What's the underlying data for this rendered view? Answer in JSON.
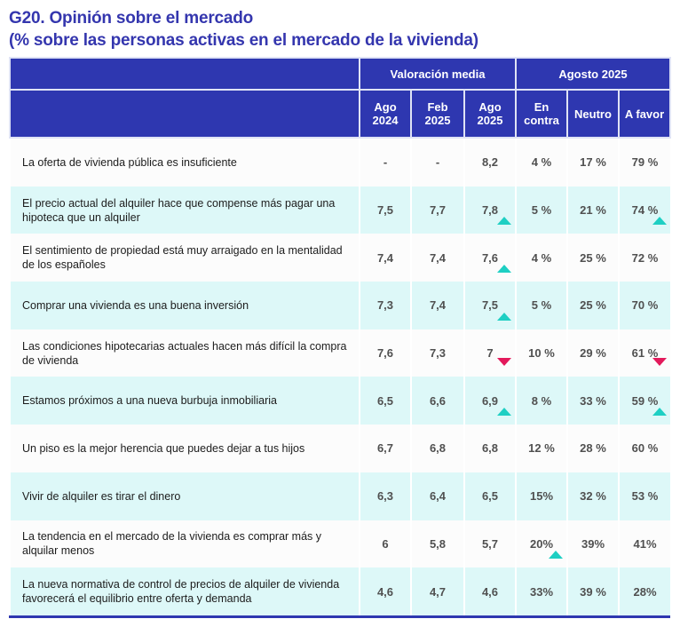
{
  "title": {
    "line1": "G20. Opinión sobre el mercado",
    "line2": "(% sobre las personas activas en el mercado de la vivienda)"
  },
  "header": {
    "group_valoracion": "Valoración media",
    "group_agosto": "Agosto 2025",
    "cols": [
      {
        "line1": "Ago",
        "line2": "2024"
      },
      {
        "line1": "Feb",
        "line2": "2025"
      },
      {
        "line1": "Ago",
        "line2": "2025"
      },
      {
        "line1": "En",
        "line2": "contra"
      },
      {
        "line1": "Neutro",
        "line2": ""
      },
      {
        "line1": "A favor",
        "line2": ""
      }
    ]
  },
  "colors": {
    "header_bg": "#2E37B0",
    "title": "#3436AE",
    "row_tint": "#DDF8F8",
    "trend_up": "#1ECFC3",
    "trend_down": "#E3195B"
  },
  "rows": [
    {
      "label": "La oferta de vivienda pública es insuficiente",
      "ago2024": "-",
      "feb2025": "-",
      "ago2025": "8,2",
      "contra": "4 %",
      "neutro": "17 %",
      "favor": "79 %",
      "trend_ago2025": "",
      "trend_contra": "",
      "trend_favor": ""
    },
    {
      "label": "El precio actual del alquiler hace que compense más pagar una hipoteca que un alquiler",
      "ago2024": "7,5",
      "feb2025": "7,7",
      "ago2025": "7,8",
      "contra": "5 %",
      "neutro": "21 %",
      "favor": "74 %",
      "trend_ago2025": "up",
      "trend_contra": "",
      "trend_favor": "up"
    },
    {
      "label": "El sentimiento de propiedad está muy arraigado en la mentalidad de los españoles",
      "ago2024": "7,4",
      "feb2025": "7,4",
      "ago2025": "7,6",
      "contra": "4 %",
      "neutro": "25 %",
      "favor": "72 %",
      "trend_ago2025": "up",
      "trend_contra": "",
      "trend_favor": ""
    },
    {
      "label": "Comprar una vivienda es una buena inversión",
      "ago2024": "7,3",
      "feb2025": "7,4",
      "ago2025": "7,5",
      "contra": "5 %",
      "neutro": "25 %",
      "favor": "70 %",
      "trend_ago2025": "up",
      "trend_contra": "",
      "trend_favor": ""
    },
    {
      "label": "Las condiciones hipotecarias actuales hacen más difícil la compra de vivienda",
      "ago2024": "7,6",
      "feb2025": "7,3",
      "ago2025": "7",
      "contra": "10 %",
      "neutro": "29 %",
      "favor": "61 %",
      "trend_ago2025": "down",
      "trend_contra": "",
      "trend_favor": "down"
    },
    {
      "label": "Estamos próximos a una nueva burbuja inmobiliaria",
      "ago2024": "6,5",
      "feb2025": "6,6",
      "ago2025": "6,9",
      "contra": "8 %",
      "neutro": "33 %",
      "favor": "59 %",
      "trend_ago2025": "up",
      "trend_contra": "",
      "trend_favor": "up"
    },
    {
      "label": "Un piso es la mejor herencia que puedes dejar a tus hijos",
      "ago2024": "6,7",
      "feb2025": "6,8",
      "ago2025": "6,8",
      "contra": "12 %",
      "neutro": "28 %",
      "favor": "60 %",
      "trend_ago2025": "",
      "trend_contra": "",
      "trend_favor": ""
    },
    {
      "label": "Vivir de alquiler es tirar el dinero",
      "ago2024": "6,3",
      "feb2025": "6,4",
      "ago2025": "6,5",
      "contra": "15%",
      "neutro": "32 %",
      "favor": "53 %",
      "trend_ago2025": "",
      "trend_contra": "",
      "trend_favor": ""
    },
    {
      "label": "La tendencia en el mercado de la vivienda es comprar más y alquilar menos",
      "ago2024": "6",
      "feb2025": "5,8",
      "ago2025": "5,7",
      "contra": "20%",
      "neutro": "39%",
      "favor": "41%",
      "trend_ago2025": "",
      "trend_contra": "up",
      "trend_favor": ""
    },
    {
      "label": "La nueva normativa de control de precios de alquiler de vivienda favorecerá el equilibrio entre oferta y demanda",
      "ago2024": "4,6",
      "feb2025": "4,7",
      "ago2025": "4,6",
      "contra": "33%",
      "neutro": "39 %",
      "favor": "28%",
      "trend_ago2025": "",
      "trend_contra": "",
      "trend_favor": ""
    }
  ]
}
